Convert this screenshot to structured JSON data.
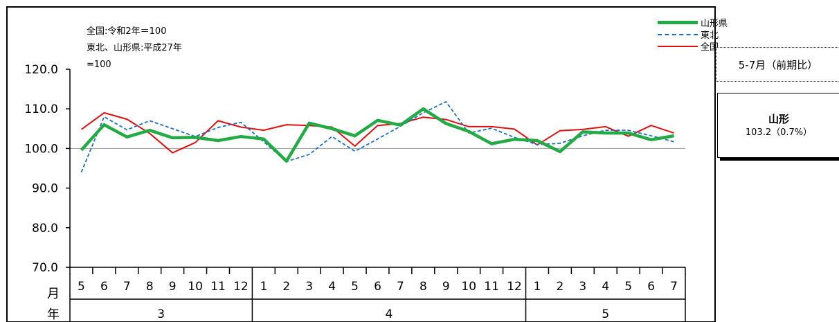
{
  "chart_data": {
    "type": "line",
    "categories": [
      "5",
      "6",
      "7",
      "8",
      "9",
      "10",
      "11",
      "12",
      "1",
      "2",
      "3",
      "4",
      "5",
      "6",
      "7",
      "8",
      "9",
      "10",
      "11",
      "12",
      "1",
      "2",
      "3",
      "4",
      "5",
      "6",
      "7"
    ],
    "year_groups": [
      {
        "label": "3",
        "count": 8
      },
      {
        "label": "4",
        "count": 12
      },
      {
        "label": "5",
        "count": 7
      }
    ],
    "row_labels": {
      "month": "月",
      "year": "年"
    },
    "ylim": [
      70,
      120
    ],
    "yticks": [
      70,
      80,
      90,
      100,
      110,
      120
    ],
    "ytick_labels": [
      "70.0",
      "80.0",
      "90.0",
      "100.0",
      "110.0",
      "120.0"
    ],
    "reference_line": 100,
    "series": [
      {
        "name": "山形県",
        "color": "#22aa44",
        "style": "solid-thick",
        "values": [
          99.6,
          106.0,
          102.9,
          104.6,
          102.7,
          102.8,
          102.0,
          103.0,
          102.4,
          96.8,
          106.4,
          105.0,
          103.2,
          107.1,
          105.9,
          110.0,
          106.3,
          104.3,
          101.2,
          102.3,
          102.0,
          99.2,
          104.2,
          103.9,
          103.9,
          102.2,
          103.2
        ]
      },
      {
        "name": "東北",
        "color": "#1a6fc4",
        "style": "dashed",
        "values": [
          94.0,
          108.0,
          104.7,
          107.0,
          105.0,
          103.0,
          105.3,
          106.6,
          101.7,
          96.7,
          98.5,
          103.0,
          99.3,
          102.4,
          105.6,
          109.0,
          111.8,
          103.9,
          105.1,
          102.8,
          101.0,
          101.3,
          103.2,
          104.6,
          104.6,
          103.2,
          101.7
        ]
      },
      {
        "name": "全国",
        "color": "#e01010",
        "style": "solid",
        "values": [
          104.8,
          109.0,
          107.4,
          103.8,
          98.9,
          101.5,
          107.0,
          105.4,
          104.6,
          106.0,
          105.8,
          105.4,
          100.6,
          105.8,
          106.3,
          107.9,
          107.3,
          105.5,
          105.5,
          104.9,
          100.9,
          104.5,
          104.8,
          105.5,
          103.1,
          105.8,
          103.9
        ]
      }
    ]
  },
  "notes": [
    "全国:令和2年＝100",
    "東北、山形県:平成27年",
    "=100"
  ],
  "period_label": "5-7月（前期比）",
  "highlight": {
    "region": "山形",
    "value": "103.2（0.7%）"
  }
}
